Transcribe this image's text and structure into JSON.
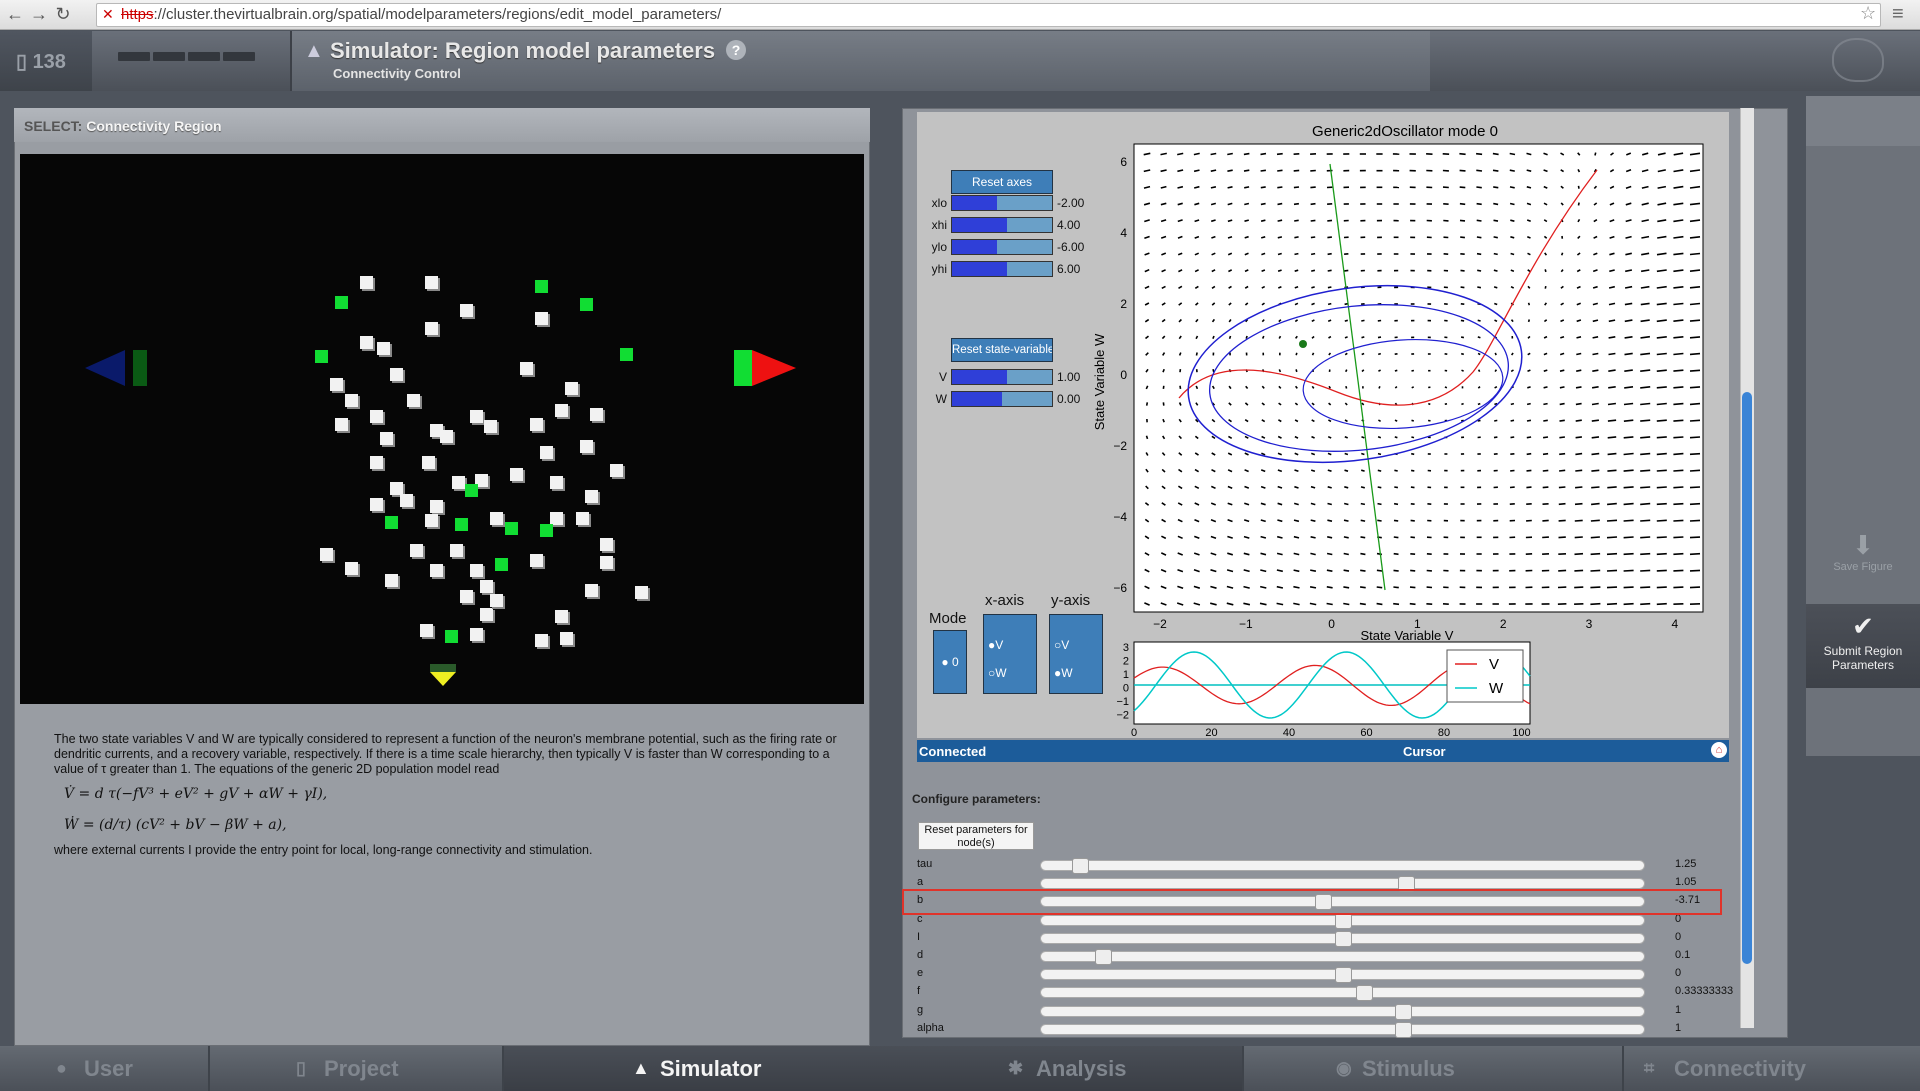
{
  "browser": {
    "url_scheme": "https",
    "url_rest": "://cluster.thevirtualbrain.org/spatial/modelparameters/regions/edit_model_parameters/"
  },
  "header": {
    "counter": "138",
    "title": "Simulator: Region model parameters",
    "subtitle": "Connectivity Control",
    "help": "?"
  },
  "left": {
    "select_label": "SELECT:",
    "select_value": "Connectivity Region"
  },
  "description": {
    "p1": "The two state variables V and W are typically considered to represent a function of the neuron's membrane potential, such as the firing rate or dendritic currents, and a recovery variable, respectively. If there is a time scale hierarchy, then typically V is faster than W corresponding to a value of τ greater than 1. The equations of the generic 2D population model read",
    "eq1": "V̇ = d τ(−fV³ + eV² + gV + αW + γI),",
    "eq2": "Ẇ = (d/τ) (cV² + bV − βW + a),",
    "p2": "where external currents I provide the entry point for local, long-range connectivity and stimulation."
  },
  "plot": {
    "title": "Generic2dOscillator mode 0",
    "xlabel": "State Variable V",
    "ylabel": "State Variable W",
    "x_ticks": [
      "−2",
      "−1",
      "0",
      "1",
      "2",
      "3",
      "4"
    ],
    "y_ticks": [
      "6",
      "4",
      "2",
      "0",
      "−2",
      "−4",
      "−6"
    ],
    "ts_x_ticks": [
      "0",
      "20",
      "40",
      "60",
      "80",
      "100"
    ],
    "ts_y_ticks": [
      "3",
      "2",
      "1",
      "0",
      "−1",
      "−2"
    ],
    "legend": [
      "V",
      "W"
    ],
    "reset_axes": "Reset axes",
    "axes_sliders": [
      {
        "label": "xlo",
        "value": "-2.00",
        "fill": 0.45
      },
      {
        "label": "xhi",
        "value": "4.00",
        "fill": 0.55
      },
      {
        "label": "ylo",
        "value": "-6.00",
        "fill": 0.45
      },
      {
        "label": "yhi",
        "value": "6.00",
        "fill": 0.55
      }
    ],
    "reset_state": "Reset state-variables",
    "state_sliders": [
      {
        "label": "V",
        "value": "1.00",
        "fill": 0.55
      },
      {
        "label": "W",
        "value": "0.00",
        "fill": 0.5
      }
    ],
    "mode_label": "Mode",
    "mode_option": "0",
    "xaxis_label": "x-axis",
    "xaxis_options": [
      "V",
      "W"
    ],
    "yaxis_label": "y-axis",
    "yaxis_options": [
      "V",
      "W"
    ]
  },
  "controlbar": {
    "connected": "Connected",
    "cursor": "Cursor"
  },
  "config": {
    "label": "Configure parameters:",
    "reset_button": "Reset parameters for node(s)",
    "params": [
      {
        "name": "tau",
        "value": "1.25",
        "pos": 0.065
      },
      {
        "name": "a",
        "value": "1.05",
        "pos": 0.605
      },
      {
        "name": "b",
        "value": "-3.71",
        "pos": 0.467
      },
      {
        "name": "c",
        "value": "0",
        "pos": 0.5
      },
      {
        "name": "I",
        "value": "0",
        "pos": 0.5
      },
      {
        "name": "d",
        "value": "0.1",
        "pos": 0.103
      },
      {
        "name": "e",
        "value": "0",
        "pos": 0.5
      },
      {
        "name": "f",
        "value": "0.33333333",
        "pos": 0.535
      },
      {
        "name": "g",
        "value": "1",
        "pos": 0.6
      },
      {
        "name": "alpha",
        "value": "1",
        "pos": 0.6
      }
    ]
  },
  "sidebar": {
    "save_figure": "Save Figure",
    "submit": "Submit Region Parameters"
  },
  "bottom_tabs": [
    {
      "label": "User",
      "icon": "person-icon"
    },
    {
      "label": "Project",
      "icon": "document-icon"
    },
    {
      "label": "Simulator",
      "icon": "rocket-icon"
    },
    {
      "label": "Analysis",
      "icon": "gear-icon"
    },
    {
      "label": "Stimulus",
      "icon": "pin-icon"
    },
    {
      "label": "Connectivity",
      "icon": "network-icon"
    }
  ]
}
